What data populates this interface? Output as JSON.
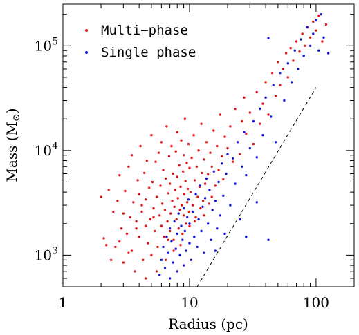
{
  "chart_data": {
    "type": "scatter",
    "xlabel": "Radius (pc)",
    "ylabel": "Mass (M",
    "ylabel_symbol": "⊙",
    "ylabel_close": ")",
    "xscale": "log",
    "yscale": "log",
    "xlim": [
      1,
      200
    ],
    "ylim": [
      500,
      250000
    ],
    "x_ticks": [
      {
        "value": 1,
        "label": "1"
      },
      {
        "value": 10,
        "label": "10"
      },
      {
        "value": 100,
        "label": "100"
      }
    ],
    "y_ticks": [
      {
        "value": 1000,
        "label_base": "10",
        "label_exp": "3"
      },
      {
        "value": 10000,
        "label_base": "10",
        "label_exp": "4"
      },
      {
        "value": 100000,
        "label_base": "10",
        "label_exp": "5"
      }
    ],
    "legend_position": "top-left",
    "grid": false,
    "reference_line": {
      "style": "dashed",
      "color": "#000000",
      "x": [
        11.5,
        100
      ],
      "y": [
        500,
        40000
      ]
    },
    "series": [
      {
        "name": "Multi−phase",
        "color": "#e01818",
        "points": [
          [
            2.0,
            3600
          ],
          [
            2.1,
            1450
          ],
          [
            2.2,
            1250
          ],
          [
            2.3,
            4200
          ],
          [
            2.4,
            900
          ],
          [
            2.5,
            2600
          ],
          [
            2.6,
            1200
          ],
          [
            2.7,
            3300
          ],
          [
            2.8,
            5800
          ],
          [
            2.9,
            1800
          ],
          [
            3.0,
            850
          ],
          [
            3.0,
            2500
          ],
          [
            3.1,
            4100
          ],
          [
            3.2,
            1600
          ],
          [
            3.3,
            7000
          ],
          [
            3.4,
            2300
          ],
          [
            3.5,
            1100
          ],
          [
            3.5,
            9000
          ],
          [
            3.6,
            3200
          ],
          [
            3.7,
            700
          ],
          [
            3.8,
            2100
          ],
          [
            3.9,
            5200
          ],
          [
            4.0,
            1500
          ],
          [
            4.0,
            3800
          ],
          [
            4.1,
            11000
          ],
          [
            4.2,
            2600
          ],
          [
            4.3,
            900
          ],
          [
            4.4,
            6100
          ],
          [
            4.5,
            1900
          ],
          [
            4.5,
            3400
          ],
          [
            4.6,
            8000
          ],
          [
            4.7,
            1300
          ],
          [
            4.8,
            4400
          ],
          [
            4.9,
            2200
          ],
          [
            5.0,
            14000
          ],
          [
            5.0,
            1000
          ],
          [
            5.1,
            5000
          ],
          [
            5.2,
            2800
          ],
          [
            5.3,
            1700
          ],
          [
            5.4,
            7800
          ],
          [
            5.5,
            3600
          ],
          [
            5.6,
            1200
          ],
          [
            5.7,
            9500
          ],
          [
            5.8,
            2400
          ],
          [
            5.9,
            4600
          ],
          [
            6.0,
            1900
          ],
          [
            6.0,
            12000
          ],
          [
            6.1,
            3100
          ],
          [
            6.2,
            6500
          ],
          [
            6.3,
            1500
          ],
          [
            6.4,
            2700
          ],
          [
            6.5,
            5400
          ],
          [
            6.6,
            17000
          ],
          [
            6.7,
            2100
          ],
          [
            6.8,
            3900
          ],
          [
            6.9,
            8800
          ],
          [
            7.0,
            1700
          ],
          [
            7.0,
            4800
          ],
          [
            7.1,
            2500
          ],
          [
            7.2,
            11000
          ],
          [
            7.3,
            3300
          ],
          [
            7.4,
            6000
          ],
          [
            7.5,
            1400
          ],
          [
            7.6,
            2900
          ],
          [
            7.7,
            4200
          ],
          [
            7.8,
            9800
          ],
          [
            7.9,
            2200
          ],
          [
            8.0,
            5600
          ],
          [
            8.0,
            15000
          ],
          [
            8.1,
            3500
          ],
          [
            8.2,
            1800
          ],
          [
            8.3,
            7200
          ],
          [
            8.4,
            2700
          ],
          [
            8.5,
            4500
          ],
          [
            8.6,
            12500
          ],
          [
            8.7,
            3000
          ],
          [
            8.8,
            1600
          ],
          [
            8.9,
            6300
          ],
          [
            9.0,
            2400
          ],
          [
            9.0,
            9000
          ],
          [
            9.1,
            3800
          ],
          [
            9.2,
            20000
          ],
          [
            9.3,
            5100
          ],
          [
            9.4,
            2000
          ],
          [
            9.5,
            7600
          ],
          [
            9.6,
            3200
          ],
          [
            9.7,
            4300
          ],
          [
            9.8,
            11500
          ],
          [
            9.9,
            2600
          ],
          [
            10.0,
            6800
          ],
          [
            10.0,
            1900
          ],
          [
            10.2,
            4000
          ],
          [
            10.4,
            8500
          ],
          [
            10.6,
            3000
          ],
          [
            10.8,
            14000
          ],
          [
            11.0,
            5200
          ],
          [
            11.2,
            2300
          ],
          [
            11.4,
            7000
          ],
          [
            11.6,
            3600
          ],
          [
            11.8,
            10000
          ],
          [
            12.0,
            4500
          ],
          [
            12.2,
            2800
          ],
          [
            12.4,
            18000
          ],
          [
            12.6,
            6100
          ],
          [
            12.8,
            3300
          ],
          [
            13.0,
            8200
          ],
          [
            13.3,
            4800
          ],
          [
            13.6,
            12000
          ],
          [
            14.0,
            5900
          ],
          [
            14.3,
            3100
          ],
          [
            14.6,
            9500
          ],
          [
            15.0,
            7000
          ],
          [
            15.5,
            15500
          ],
          [
            16.0,
            4600
          ],
          [
            16.5,
            11000
          ],
          [
            17.0,
            6500
          ],
          [
            17.5,
            22000
          ],
          [
            18.0,
            8800
          ],
          [
            18.5,
            5300
          ],
          [
            19.0,
            13500
          ],
          [
            20.0,
            10500
          ],
          [
            21.0,
            17000
          ],
          [
            22.0,
            7800
          ],
          [
            23.0,
            25000
          ],
          [
            24.0,
            12000
          ],
          [
            25.0,
            9200
          ],
          [
            26.0,
            19000
          ],
          [
            27.0,
            32000
          ],
          [
            28.0,
            14500
          ],
          [
            30.0,
            23000
          ],
          [
            32.0,
            11500
          ],
          [
            34.0,
            36000
          ],
          [
            36.0,
            18000
          ],
          [
            38.0,
            28000
          ],
          [
            40.0,
            45000
          ],
          [
            42.0,
            22000
          ],
          [
            45.0,
            55000
          ],
          [
            48.0,
            33000
          ],
          [
            50.0,
            70000
          ],
          [
            52.0,
            42000
          ],
          [
            55.0,
            60000
          ],
          [
            58.0,
            85000
          ],
          [
            60.0,
            50000
          ],
          [
            63.0,
            95000
          ],
          [
            66.0,
            72000
          ],
          [
            70.0,
            110000
          ],
          [
            74.0,
            88000
          ],
          [
            78.0,
            130000
          ],
          [
            82.0,
            100000
          ],
          [
            86.0,
            150000
          ],
          [
            90.0,
            120000
          ],
          [
            95.0,
            170000
          ],
          [
            100.0,
            140000
          ],
          [
            105.0,
            195000
          ],
          [
            112.0,
            110000
          ],
          [
            120.0,
            160000
          ],
          [
            4.5,
            600
          ],
          [
            5.5,
            700
          ],
          [
            6.5,
            900
          ],
          [
            3.3,
            1050
          ],
          [
            2.8,
            1350
          ],
          [
            7.5,
            1100
          ],
          [
            8.5,
            1250
          ],
          [
            6.8,
            1400
          ],
          [
            11.0,
            2100
          ],
          [
            13.0,
            2400
          ],
          [
            4.2,
            3000
          ],
          [
            3.8,
            1800
          ],
          [
            5.2,
            2300
          ],
          [
            15.0,
            3600
          ]
        ]
      },
      {
        "name": "Single phase",
        "color": "#1616d8",
        "points": [
          [
            5.8,
            650
          ],
          [
            6.0,
            900
          ],
          [
            6.2,
            1200
          ],
          [
            6.4,
            750
          ],
          [
            6.6,
            1500
          ],
          [
            6.8,
            1050
          ],
          [
            7.0,
            600
          ],
          [
            7.0,
            1800
          ],
          [
            7.2,
            1350
          ],
          [
            7.4,
            850
          ],
          [
            7.6,
            2100
          ],
          [
            7.8,
            1150
          ],
          [
            8.0,
            700
          ],
          [
            8.0,
            1600
          ],
          [
            8.2,
            2500
          ],
          [
            8.4,
            1000
          ],
          [
            8.6,
            1900
          ],
          [
            8.8,
            1400
          ],
          [
            9.0,
            800
          ],
          [
            9.0,
            2800
          ],
          [
            9.2,
            1700
          ],
          [
            9.4,
            1100
          ],
          [
            9.6,
            2300
          ],
          [
            9.8,
            3400
          ],
          [
            10.0,
            1300
          ],
          [
            10.0,
            2000
          ],
          [
            10.3,
            900
          ],
          [
            10.6,
            2600
          ],
          [
            10.9,
            1500
          ],
          [
            11.2,
            3800
          ],
          [
            11.5,
            1200
          ],
          [
            11.8,
            2200
          ],
          [
            12.1,
            4600
          ],
          [
            12.4,
            1700
          ],
          [
            12.7,
            2900
          ],
          [
            13.0,
            1050
          ],
          [
            13.3,
            3500
          ],
          [
            13.6,
            5400
          ],
          [
            14.0,
            2000
          ],
          [
            14.4,
            4200
          ],
          [
            14.8,
            1400
          ],
          [
            15.2,
            2700
          ],
          [
            15.6,
            6300
          ],
          [
            16.0,
            3300
          ],
          [
            16.5,
            1800
          ],
          [
            17.0,
            5000
          ],
          [
            17.5,
            2400
          ],
          [
            18.0,
            7500
          ],
          [
            18.5,
            3700
          ],
          [
            19.0,
            1600
          ],
          [
            19.5,
            6000
          ],
          [
            20.0,
            9200
          ],
          [
            21.0,
            3000
          ],
          [
            22.0,
            8400
          ],
          [
            23.0,
            4800
          ],
          [
            24.0,
            12000
          ],
          [
            25.0,
            2200
          ],
          [
            26.0,
            7000
          ],
          [
            27.0,
            15000
          ],
          [
            28.0,
            5800
          ],
          [
            30.0,
            10500
          ],
          [
            32.0,
            19000
          ],
          [
            34.0,
            8600
          ],
          [
            36.0,
            25000
          ],
          [
            38.0,
            14000
          ],
          [
            40.0,
            32000
          ],
          [
            42.0,
            1400
          ],
          [
            44.0,
            21000
          ],
          [
            46.0,
            42000
          ],
          [
            48.0,
            12000
          ],
          [
            52.0,
            55000
          ],
          [
            56.0,
            30000
          ],
          [
            60.0,
            68000
          ],
          [
            64.0,
            45000
          ],
          [
            68.0,
            90000
          ],
          [
            72.0,
            60000
          ],
          [
            76.0,
            115000
          ],
          [
            80.0,
            80000
          ],
          [
            85.0,
            150000
          ],
          [
            90.0,
            100000
          ],
          [
            95.0,
            130000
          ],
          [
            100.0,
            175000
          ],
          [
            105.0,
            90000
          ],
          [
            110.0,
            200000
          ],
          [
            115.0,
            120000
          ],
          [
            125.0,
            85000
          ],
          [
            42.0,
            118000
          ],
          [
            34.0,
            3200
          ],
          [
            28.0,
            1500
          ],
          [
            16.0,
            1100
          ]
        ]
      }
    ]
  }
}
